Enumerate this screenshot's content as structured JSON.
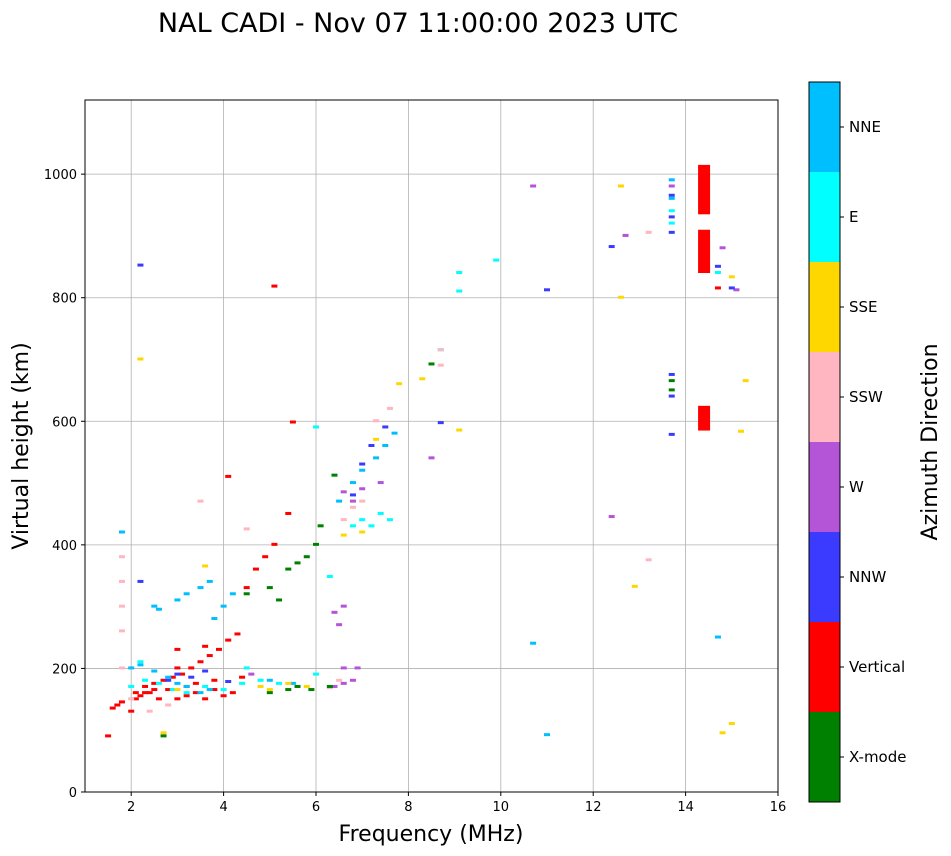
{
  "chart_data": {
    "type": "scatter",
    "title": "NAL CADI - Nov 07 11:00:00 2023 UTC",
    "xlabel": "Frequency (MHz)",
    "ylabel": "Virtual height (km)",
    "xlim": [
      1,
      16
    ],
    "ylim": [
      0,
      1120
    ],
    "xticks": [
      2,
      4,
      6,
      8,
      10,
      12,
      14,
      16
    ],
    "yticks": [
      0,
      200,
      400,
      600,
      800,
      1000
    ],
    "grid": true,
    "colorbar": {
      "label": "Azimuth Direction",
      "categories": [
        {
          "name": "X-mode",
          "color": "#008000"
        },
        {
          "name": "Vertical",
          "color": "#ff0000"
        },
        {
          "name": "NNW",
          "color": "#3b3bff"
        },
        {
          "name": "W",
          "color": "#b455d8"
        },
        {
          "name": "SSW",
          "color": "#ffb6c1"
        },
        {
          "name": "SSE",
          "color": "#ffd700"
        },
        {
          "name": "E",
          "color": "#00ffff"
        },
        {
          "name": "NNE",
          "color": "#00bfff"
        }
      ]
    },
    "series": [
      {
        "name": "Vertical",
        "points": [
          [
            1.6,
            135
          ],
          [
            1.7,
            140
          ],
          [
            1.8,
            145
          ],
          [
            2.0,
            130
          ],
          [
            2.1,
            150
          ],
          [
            2.2,
            155
          ],
          [
            2.4,
            160
          ],
          [
            2.6,
            150
          ],
          [
            2.8,
            165
          ],
          [
            3.0,
            150
          ],
          [
            3.2,
            155
          ],
          [
            3.4,
            160
          ],
          [
            3.6,
            150
          ],
          [
            3.8,
            165
          ],
          [
            4.0,
            155
          ],
          [
            4.2,
            160
          ],
          [
            2.1,
            160
          ],
          [
            2.3,
            170
          ],
          [
            2.5,
            175
          ],
          [
            2.7,
            180
          ],
          [
            2.9,
            185
          ],
          [
            3.1,
            190
          ],
          [
            3.3,
            200
          ],
          [
            3.5,
            210
          ],
          [
            3.7,
            220
          ],
          [
            3.9,
            230
          ],
          [
            4.1,
            245
          ],
          [
            4.3,
            255
          ],
          [
            3.2,
            170
          ],
          [
            3.4,
            175
          ],
          [
            1.5,
            90
          ],
          [
            3.0,
            200
          ],
          [
            3.6,
            235
          ],
          [
            4.5,
            330
          ],
          [
            4.7,
            360
          ],
          [
            4.9,
            380
          ],
          [
            5.1,
            400
          ],
          [
            5.4,
            450
          ],
          [
            5.1,
            818
          ],
          [
            4.1,
            510
          ],
          [
            5.5,
            598
          ],
          [
            2.3,
            160
          ],
          [
            2.5,
            165
          ],
          [
            3.8,
            180
          ],
          [
            4.4,
            185
          ],
          [
            14.7,
            815
          ],
          [
            3.0,
            230
          ]
        ]
      },
      {
        "name": "Vertical-large",
        "blocks": [
          [
            14.4,
            1015,
            935
          ],
          [
            14.4,
            910,
            840
          ],
          [
            14.4,
            625,
            585
          ]
        ]
      },
      {
        "name": "NNE",
        "points": [
          [
            2.0,
            200
          ],
          [
            2.2,
            205
          ],
          [
            2.5,
            195
          ],
          [
            2.8,
            185
          ],
          [
            3.0,
            175
          ],
          [
            3.2,
            170
          ],
          [
            3.5,
            160
          ],
          [
            3.7,
            165
          ],
          [
            3.0,
            310
          ],
          [
            3.2,
            320
          ],
          [
            3.5,
            330
          ],
          [
            3.7,
            340
          ],
          [
            2.5,
            300
          ],
          [
            2.6,
            295
          ],
          [
            3.8,
            280
          ],
          [
            4.0,
            300
          ],
          [
            4.2,
            320
          ],
          [
            6.5,
            470
          ],
          [
            6.8,
            500
          ],
          [
            7.0,
            520
          ],
          [
            7.3,
            540
          ],
          [
            7.5,
            560
          ],
          [
            7.7,
            580
          ],
          [
            5.0,
            180
          ],
          [
            5.5,
            175
          ],
          [
            1.8,
            420
          ],
          [
            13.7,
            990
          ],
          [
            13.7,
            960
          ],
          [
            14.7,
            250
          ],
          [
            10.7,
            240
          ],
          [
            11.0,
            92
          ]
        ]
      },
      {
        "name": "E",
        "points": [
          [
            2.0,
            170
          ],
          [
            2.3,
            180
          ],
          [
            2.6,
            175
          ],
          [
            2.9,
            165
          ],
          [
            3.2,
            160
          ],
          [
            3.6,
            170
          ],
          [
            4.0,
            165
          ],
          [
            4.4,
            175
          ],
          [
            4.8,
            180
          ],
          [
            5.2,
            175
          ],
          [
            5.6,
            170
          ],
          [
            6.0,
            190
          ],
          [
            6.3,
            348
          ],
          [
            6.8,
            430
          ],
          [
            7.0,
            440
          ],
          [
            7.2,
            430
          ],
          [
            7.4,
            450
          ],
          [
            7.6,
            440
          ],
          [
            9.1,
            810
          ],
          [
            9.1,
            840
          ],
          [
            9.9,
            860
          ],
          [
            8.7,
            715
          ],
          [
            6.0,
            590
          ],
          [
            13.7,
            940
          ],
          [
            13.7,
            920
          ],
          [
            14.7,
            840
          ],
          [
            2.2,
            210
          ],
          [
            4.5,
            200
          ]
        ]
      },
      {
        "name": "SSE",
        "points": [
          [
            2.2,
            700
          ],
          [
            3.6,
            365
          ],
          [
            4.8,
            170
          ],
          [
            5.0,
            165
          ],
          [
            5.4,
            175
          ],
          [
            5.8,
            170
          ],
          [
            6.6,
            415
          ],
          [
            7.0,
            420
          ],
          [
            7.3,
            570
          ],
          [
            7.8,
            660
          ],
          [
            8.3,
            668
          ],
          [
            9.1,
            585
          ],
          [
            12.6,
            980
          ],
          [
            12.6,
            800
          ],
          [
            12.9,
            332
          ],
          [
            14.8,
            95
          ],
          [
            15.0,
            110
          ],
          [
            15.2,
            583
          ],
          [
            15.3,
            665
          ],
          [
            15.0,
            833
          ],
          [
            3.0,
            165
          ],
          [
            2.7,
            95
          ]
        ]
      },
      {
        "name": "SSW",
        "points": [
          [
            1.8,
            380
          ],
          [
            1.8,
            340
          ],
          [
            1.8,
            300
          ],
          [
            1.8,
            260
          ],
          [
            1.8,
            200
          ],
          [
            2.0,
            150
          ],
          [
            2.4,
            130
          ],
          [
            2.8,
            140
          ],
          [
            3.5,
            470
          ],
          [
            4.5,
            425
          ],
          [
            6.6,
            440
          ],
          [
            6.8,
            460
          ],
          [
            7.0,
            470
          ],
          [
            7.3,
            600
          ],
          [
            7.6,
            620
          ],
          [
            8.7,
            690
          ],
          [
            8.7,
            715
          ],
          [
            12.7,
            900
          ],
          [
            13.2,
            905
          ],
          [
            13.2,
            375
          ],
          [
            6.5,
            180
          ],
          [
            6.3,
            168
          ]
        ]
      },
      {
        "name": "W",
        "points": [
          [
            6.4,
            170
          ],
          [
            6.6,
            175
          ],
          [
            6.8,
            180
          ],
          [
            6.6,
            200
          ],
          [
            6.9,
            200
          ],
          [
            6.4,
            290
          ],
          [
            6.6,
            300
          ],
          [
            6.5,
            270
          ],
          [
            6.6,
            485
          ],
          [
            6.8,
            470
          ],
          [
            7.0,
            490
          ],
          [
            7.4,
            500
          ],
          [
            8.5,
            540
          ],
          [
            10.7,
            980
          ],
          [
            12.7,
            900
          ],
          [
            12.4,
            445
          ],
          [
            13.7,
            980
          ],
          [
            14.8,
            880
          ],
          [
            15.1,
            812
          ],
          [
            4.6,
            190
          ]
        ]
      },
      {
        "name": "NNW",
        "points": [
          [
            2.2,
            340
          ],
          [
            2.8,
            180
          ],
          [
            3.0,
            190
          ],
          [
            3.3,
            185
          ],
          [
            3.6,
            195
          ],
          [
            6.8,
            480
          ],
          [
            7.0,
            530
          ],
          [
            7.2,
            560
          ],
          [
            7.5,
            590
          ],
          [
            8.7,
            597
          ],
          [
            11.0,
            812
          ],
          [
            12.4,
            882
          ],
          [
            13.7,
            965
          ],
          [
            13.7,
            930
          ],
          [
            13.7,
            905
          ],
          [
            13.7,
            675
          ],
          [
            13.7,
            640
          ],
          [
            13.7,
            578
          ],
          [
            14.7,
            850
          ],
          [
            15.0,
            815
          ],
          [
            2.2,
            852
          ],
          [
            4.1,
            178
          ]
        ]
      },
      {
        "name": "X-mode",
        "points": [
          [
            5.0,
            160
          ],
          [
            5.4,
            165
          ],
          [
            5.6,
            170
          ],
          [
            5.9,
            165
          ],
          [
            6.3,
            170
          ],
          [
            5.4,
            360
          ],
          [
            5.6,
            370
          ],
          [
            5.8,
            380
          ],
          [
            6.0,
            400
          ],
          [
            6.1,
            430
          ],
          [
            6.4,
            512
          ],
          [
            5.0,
            330
          ],
          [
            4.5,
            320
          ],
          [
            2.7,
            90
          ],
          [
            5.2,
            310
          ],
          [
            8.5,
            692
          ],
          [
            13.7,
            665
          ],
          [
            13.7,
            650
          ]
        ]
      }
    ]
  }
}
